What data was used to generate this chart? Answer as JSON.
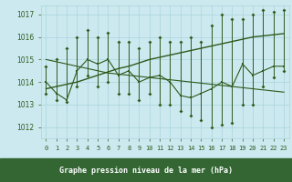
{
  "title": "Graphe pression niveau de la mer (hPa)",
  "x_labels": [
    "0",
    "1",
    "2",
    "3",
    "4",
    "5",
    "6",
    "7",
    "8",
    "9",
    "10",
    "11",
    "12",
    "13",
    "14",
    "15",
    "16",
    "17",
    "18",
    "19",
    "20",
    "21",
    "22",
    "23"
  ],
  "hours": [
    0,
    1,
    2,
    3,
    4,
    5,
    6,
    7,
    8,
    9,
    10,
    11,
    12,
    13,
    14,
    15,
    16,
    17,
    18,
    19,
    20,
    21,
    22,
    23
  ],
  "pressure_max": [
    1014.7,
    1015.0,
    1015.5,
    1016.0,
    1016.3,
    1016.0,
    1016.2,
    1015.8,
    1015.8,
    1015.5,
    1015.8,
    1016.0,
    1015.8,
    1015.8,
    1016.0,
    1015.8,
    1016.5,
    1017.0,
    1016.8,
    1016.8,
    1017.0,
    1017.2,
    1017.1,
    1017.2
  ],
  "pressure_min": [
    1013.5,
    1013.2,
    1013.1,
    1013.8,
    1014.3,
    1013.8,
    1014.0,
    1013.5,
    1013.5,
    1013.2,
    1013.5,
    1013.0,
    1013.0,
    1012.7,
    1012.5,
    1012.3,
    1012.0,
    1012.1,
    1012.2,
    1013.0,
    1013.0,
    1013.8,
    1014.2,
    1014.5
  ],
  "pressure_mean": [
    1014.0,
    1013.5,
    1013.2,
    1014.5,
    1015.0,
    1014.8,
    1015.0,
    1014.3,
    1014.5,
    1014.0,
    1014.2,
    1014.3,
    1014.0,
    1013.4,
    1013.3,
    1013.5,
    1013.7,
    1014.0,
    1013.8,
    1014.8,
    1014.3,
    1014.5,
    1014.7,
    1014.7
  ],
  "trend_up": [
    1013.7,
    1013.8,
    1013.9,
    1014.0,
    1014.15,
    1014.3,
    1014.45,
    1014.6,
    1014.7,
    1014.85,
    1015.0,
    1015.1,
    1015.2,
    1015.3,
    1015.4,
    1015.5,
    1015.6,
    1015.7,
    1015.8,
    1015.9,
    1016.0,
    1016.05,
    1016.1,
    1016.15
  ],
  "trend_down": [
    1015.0,
    1014.9,
    1014.8,
    1014.7,
    1014.6,
    1014.5,
    1014.4,
    1014.35,
    1014.3,
    1014.25,
    1014.2,
    1014.15,
    1014.1,
    1014.05,
    1014.0,
    1013.95,
    1013.9,
    1013.85,
    1013.8,
    1013.75,
    1013.7,
    1013.65,
    1013.6,
    1013.55
  ],
  "ylim": [
    1011.5,
    1017.4
  ],
  "yticks": [
    1012,
    1013,
    1014,
    1015,
    1016,
    1017
  ],
  "bg_color": "#cce9f0",
  "grid_color": "#aad4dc",
  "line_color": "#2d5a1b",
  "tick_color": "#2d5a1b",
  "title_bg": "#336633",
  "title_fg": "#ffffff",
  "title_fontsize": 6.0,
  "tick_fontsize": 5.0,
  "ytick_fontsize": 5.5
}
